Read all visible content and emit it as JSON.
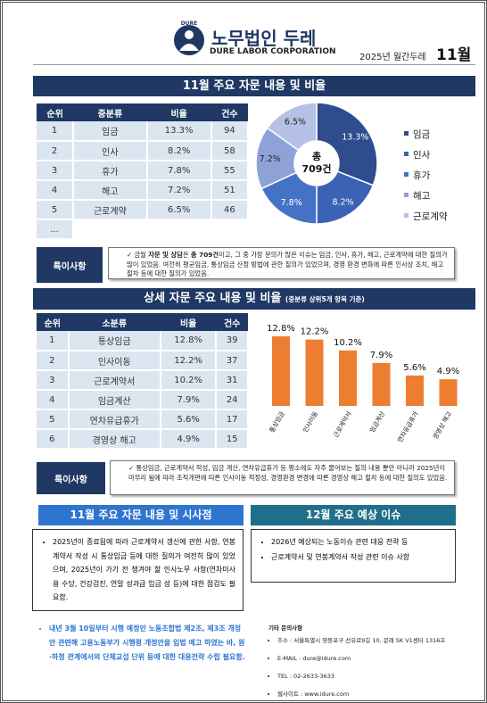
{
  "header": {
    "logo_mark": "DURE",
    "company": "노무법인 두레",
    "company_en": "DURE LABOR CORPORATION",
    "issue": "2025년 월간두레",
    "month": "11월"
  },
  "section1": {
    "title": "11월 주요 자문 내용 및 비율"
  },
  "table1": {
    "header": [
      "순위",
      "중분류",
      "비율",
      "건수"
    ],
    "rows": [
      [
        "1",
        "임금",
        "13.3%",
        "94"
      ],
      [
        "2",
        "인사",
        "8.2%",
        "58"
      ],
      [
        "3",
        "휴가",
        "7.8%",
        "55"
      ],
      [
        "4",
        "해고",
        "7.2%",
        "51"
      ],
      [
        "5",
        "근로계약",
        "6.5%",
        "46"
      ],
      [
        "..."
      ]
    ]
  },
  "note1": {
    "label": "특이사항",
    "parts": [
      "금월 ",
      "자문 및 상담",
      "은 ",
      "총 709건",
      "이고, 그 중 가장 문의가 많은 이슈는 임금, 인사, 휴가, 해고, 근로계약에 대한 질의가 많이 있었음. 여전히 평균임금, 통상임금 산정 방법에 관한 질의가 있었으며, 경영 환경 변화에 따른 인사상 조치, 해고 절차 등에 대한 질의가 있었음."
    ]
  },
  "section2": {
    "title": "상세 자문 주요 내용 및 비율",
    "subtitle": "(중분류 상위5개 항목 기준)"
  },
  "table2": {
    "header": [
      "순위",
      "소분류",
      "비율",
      "건수"
    ],
    "rows": [
      [
        "1",
        "통상임금",
        "12.8%",
        "39"
      ],
      [
        "2",
        "인사이동",
        "12.2%",
        "37"
      ],
      [
        "3",
        "근로계약서",
        "10.2%",
        "31"
      ],
      [
        "4",
        "임금계산",
        "7.9%",
        "24"
      ],
      [
        "5",
        "연차유급휴가",
        "5.6%",
        "17"
      ],
      [
        "6",
        "경영상 해고",
        "4.9%",
        "15"
      ]
    ]
  },
  "note2": {
    "label": "특이사항",
    "text": "통상임금, 근로계약서 작성, 임금 계산, 연차유급휴가 등 평소에도 자주 물어보는 질의 내용 뿐만 아니라 2025년이 마무리 됨에 따라 조직개편에 따른 인사이동 적정성, 경영환경 변경에 따른 경영상 해고 절차 등에 대한 질의도 있었음."
  },
  "box1": {
    "title": "11월 주요 자문 내용 및 시사점",
    "bullets": [
      "2025년이 종료됨에 따라 근로계약서 갱신에 관한 사항, 연봉계약서 작성 시 통상임금 등에 대한 질의가 여전히 많이 있었으며, 2025년이 가기 전 챙겨야 할 인사노무 사항(연차미사용 수당, 건강검진, 연말 성과급 임금 성 등)에 대한 점검도 필요함."
    ],
    "note": "내년 3월 10일부터 시행 예정인 노동조합법 제2조, 제3조 개정안 관련해 고용노동부가 시행령 개정안을 입법 예고 하였는 바, 원·하청 관계에서의 단체교섭 단위 등에 대한 대응전략 수립 필요함."
  },
  "box2": {
    "title": "12월 주요 예상 이슈",
    "bullets": [
      "2026년 예상되는 노동이슈 관련 대응 전략 등",
      "근로계약서 및 연봉계약서 작성 관련 이슈 사항"
    ]
  },
  "contact": {
    "title": "기타 문의사항",
    "items": [
      "주소 : 서울특별시 영등포구 선유로9길 10, 문래 SK V1센터 1316호",
      "E-MAIL : dure@idure.com",
      "TEL : 02-2633-3633",
      "웹사이트 : www.idure.com"
    ]
  },
  "chart_data": [
    {
      "type": "donut",
      "categories": [
        "임금",
        "인사",
        "휴가",
        "해고",
        "근로계약"
      ],
      "values": [
        13.3,
        8.2,
        7.8,
        7.2,
        6.5
      ],
      "value_labels": [
        "13.3%",
        "8.2%",
        "7.8%",
        "7.2%",
        "6.5%"
      ],
      "colors": [
        "#2e4d8f",
        "#3b62b4",
        "#4472c4",
        "#8fa2d8",
        "#b6c2e5"
      ],
      "center_text": [
        "총",
        "709건"
      ],
      "legend": "right"
    },
    {
      "type": "bar",
      "categories": [
        "통상임금",
        "인사이동",
        "근로계약서",
        "임금계산",
        "연차유급휴가",
        "경영상 해고"
      ],
      "values": [
        12.8,
        12.2,
        10.2,
        7.9,
        5.6,
        4.9
      ],
      "value_labels": [
        "12.8%",
        "12.2%",
        "10.2%",
        "7.9%",
        "5.6%",
        "4.9%"
      ],
      "color": "#ed7d31"
    }
  ]
}
